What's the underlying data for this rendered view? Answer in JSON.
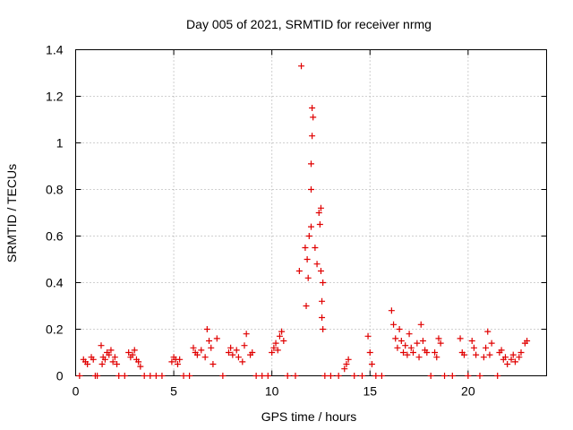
{
  "chart_data": {
    "type": "scatter",
    "title": "Day 005 of 2021, SRMTID for receiver nrmg",
    "xlabel": "GPS time / hours",
    "ylabel": "SRMTID / TECUs",
    "xlim": [
      0,
      24
    ],
    "ylim": [
      0,
      1.4
    ],
    "xticks": [
      0,
      5,
      10,
      15,
      20
    ],
    "yticks": [
      0,
      0.2,
      0.4,
      0.6,
      0.8,
      1,
      1.2,
      1.4
    ],
    "xtick_labels": [
      "0",
      "5",
      "10",
      "15",
      "20"
    ],
    "ytick_labels": [
      "0",
      "0.2",
      "0.4",
      "0.6",
      "0.8",
      "1",
      "1.2",
      "1.4"
    ],
    "grid": true,
    "marker": "+",
    "series": [
      {
        "name": "SRMTID",
        "color": "#e00000",
        "points": [
          [
            0.2,
            0
          ],
          [
            0.4,
            0.07
          ],
          [
            0.5,
            0.06
          ],
          [
            0.6,
            0.05
          ],
          [
            0.8,
            0.08
          ],
          [
            0.9,
            0.07
          ],
          [
            1.0,
            0
          ],
          [
            1.1,
            0
          ],
          [
            1.3,
            0.13
          ],
          [
            1.35,
            0.05
          ],
          [
            1.4,
            0.08
          ],
          [
            1.5,
            0.07
          ],
          [
            1.6,
            0.1
          ],
          [
            1.7,
            0.09
          ],
          [
            1.8,
            0.11
          ],
          [
            1.9,
            0.06
          ],
          [
            2.0,
            0.08
          ],
          [
            2.1,
            0.05
          ],
          [
            2.2,
            0
          ],
          [
            2.5,
            0
          ],
          [
            2.7,
            0.1
          ],
          [
            2.8,
            0.08
          ],
          [
            2.9,
            0.09
          ],
          [
            3.0,
            0.11
          ],
          [
            3.1,
            0.07
          ],
          [
            3.2,
            0.06
          ],
          [
            3.3,
            0.04
          ],
          [
            3.5,
            0
          ],
          [
            3.8,
            0
          ],
          [
            4.1,
            0
          ],
          [
            4.4,
            0
          ],
          [
            4.9,
            0.06
          ],
          [
            5.0,
            0.08
          ],
          [
            5.1,
            0.07
          ],
          [
            5.2,
            0.05
          ],
          [
            5.3,
            0.07
          ],
          [
            5.5,
            0
          ],
          [
            5.8,
            0
          ],
          [
            6.0,
            0.12
          ],
          [
            6.1,
            0.1
          ],
          [
            6.2,
            0.09
          ],
          [
            6.4,
            0.11
          ],
          [
            6.6,
            0.08
          ],
          [
            6.7,
            0.2
          ],
          [
            6.8,
            0.15
          ],
          [
            6.9,
            0.12
          ],
          [
            7.0,
            0.05
          ],
          [
            7.2,
            0.16
          ],
          [
            7.5,
            0
          ],
          [
            7.8,
            0.1
          ],
          [
            7.9,
            0.12
          ],
          [
            8.0,
            0.09
          ],
          [
            8.2,
            0.11
          ],
          [
            8.3,
            0.08
          ],
          [
            8.5,
            0.06
          ],
          [
            8.6,
            0.13
          ],
          [
            8.7,
            0.18
          ],
          [
            8.9,
            0.09
          ],
          [
            9.0,
            0.1
          ],
          [
            9.2,
            0
          ],
          [
            9.5,
            0
          ],
          [
            9.8,
            0
          ],
          [
            10.0,
            0.1
          ],
          [
            10.1,
            0.12
          ],
          [
            10.2,
            0.14
          ],
          [
            10.3,
            0.11
          ],
          [
            10.4,
            0.17
          ],
          [
            10.5,
            0.19
          ],
          [
            10.6,
            0.15
          ],
          [
            10.8,
            0
          ],
          [
            11.2,
            0
          ],
          [
            11.4,
            0.45
          ],
          [
            11.5,
            1.33
          ],
          [
            11.7,
            0.55
          ],
          [
            11.75,
            0.3
          ],
          [
            11.8,
            0.5
          ],
          [
            11.85,
            0.42
          ],
          [
            11.9,
            0.6
          ],
          [
            12.0,
            0.64
          ],
          [
            12.05,
            1.15
          ],
          [
            12.1,
            1.11
          ],
          [
            12.05,
            1.03
          ],
          [
            12.0,
            0.91
          ],
          [
            12.0,
            0.8
          ],
          [
            12.2,
            0.55
          ],
          [
            12.3,
            0.48
          ],
          [
            12.4,
            0.7
          ],
          [
            12.45,
            0.65
          ],
          [
            12.5,
            0.72
          ],
          [
            12.5,
            0.45
          ],
          [
            12.55,
            0.32
          ],
          [
            12.55,
            0.25
          ],
          [
            12.6,
            0.2
          ],
          [
            12.6,
            0.4
          ],
          [
            12.7,
            0
          ],
          [
            13.0,
            0
          ],
          [
            13.4,
            0
          ],
          [
            13.7,
            0.03
          ],
          [
            13.8,
            0.05
          ],
          [
            13.9,
            0.07
          ],
          [
            14.2,
            0
          ],
          [
            14.6,
            0
          ],
          [
            14.9,
            0.17
          ],
          [
            15.0,
            0.1
          ],
          [
            15.1,
            0.05
          ],
          [
            15.3,
            0
          ],
          [
            15.6,
            0
          ],
          [
            16.1,
            0.28
          ],
          [
            16.2,
            0.22
          ],
          [
            16.3,
            0.16
          ],
          [
            16.4,
            0.12
          ],
          [
            16.5,
            0.2
          ],
          [
            16.6,
            0.15
          ],
          [
            16.7,
            0.1
          ],
          [
            16.8,
            0.13
          ],
          [
            16.9,
            0.09
          ],
          [
            17.0,
            0.18
          ],
          [
            17.1,
            0.12
          ],
          [
            17.2,
            0.1
          ],
          [
            17.4,
            0.14
          ],
          [
            17.5,
            0.08
          ],
          [
            17.6,
            0.22
          ],
          [
            17.7,
            0.15
          ],
          [
            17.8,
            0.11
          ],
          [
            17.9,
            0.1
          ],
          [
            18.1,
            0
          ],
          [
            18.3,
            0.1
          ],
          [
            18.4,
            0.08
          ],
          [
            18.5,
            0.16
          ],
          [
            18.6,
            0.14
          ],
          [
            18.8,
            0
          ],
          [
            19.2,
            0
          ],
          [
            19.6,
            0.16
          ],
          [
            19.7,
            0.1
          ],
          [
            19.8,
            0.09
          ],
          [
            20.0,
            0
          ],
          [
            20.2,
            0.15
          ],
          [
            20.3,
            0.12
          ],
          [
            20.4,
            0.09
          ],
          [
            20.6,
            0
          ],
          [
            20.8,
            0.08
          ],
          [
            20.9,
            0.12
          ],
          [
            21.0,
            0.19
          ],
          [
            21.1,
            0.09
          ],
          [
            21.2,
            0.14
          ],
          [
            21.5,
            0
          ],
          [
            21.6,
            0.1
          ],
          [
            21.7,
            0.11
          ],
          [
            21.8,
            0.07
          ],
          [
            21.9,
            0.08
          ],
          [
            22.0,
            0.05
          ],
          [
            22.2,
            0.07
          ],
          [
            22.3,
            0.09
          ],
          [
            22.4,
            0.06
          ],
          [
            22.6,
            0.08
          ],
          [
            22.7,
            0.1
          ],
          [
            22.9,
            0.14
          ],
          [
            23.0,
            0.15
          ]
        ]
      }
    ]
  }
}
